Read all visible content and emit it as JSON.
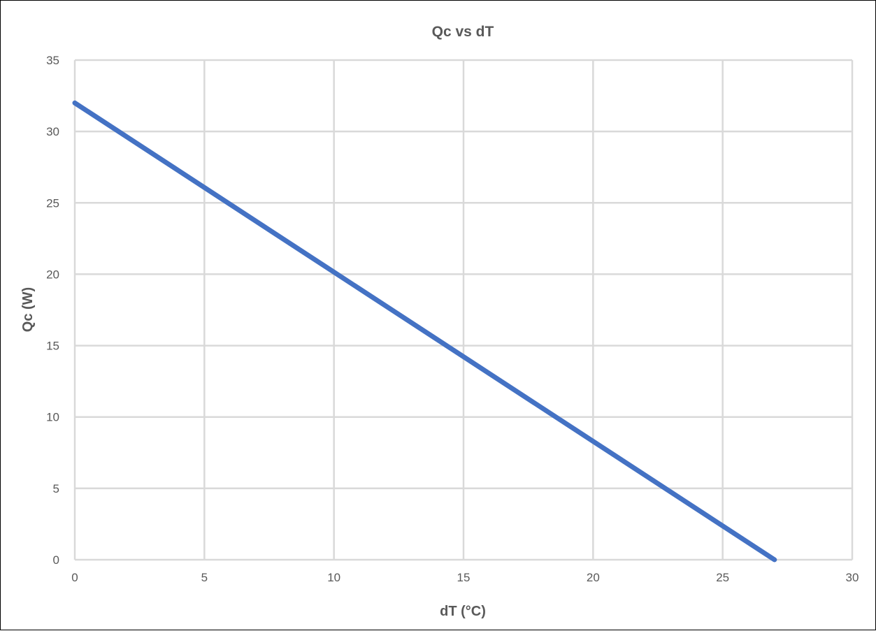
{
  "chart_data": {
    "type": "line",
    "title": "Qc vs dT",
    "xlabel": "dT (°C)",
    "ylabel": "Qc (W)",
    "xlim": [
      0,
      30
    ],
    "ylim": [
      0,
      35
    ],
    "xticks": [
      0,
      5,
      10,
      15,
      20,
      25,
      30
    ],
    "yticks": [
      0,
      5,
      10,
      15,
      20,
      25,
      30,
      35
    ],
    "grid": true,
    "legend": "none",
    "series": [
      {
        "color": "#4472C4",
        "x": [
          0,
          27
        ],
        "y": [
          32,
          0
        ]
      }
    ]
  }
}
